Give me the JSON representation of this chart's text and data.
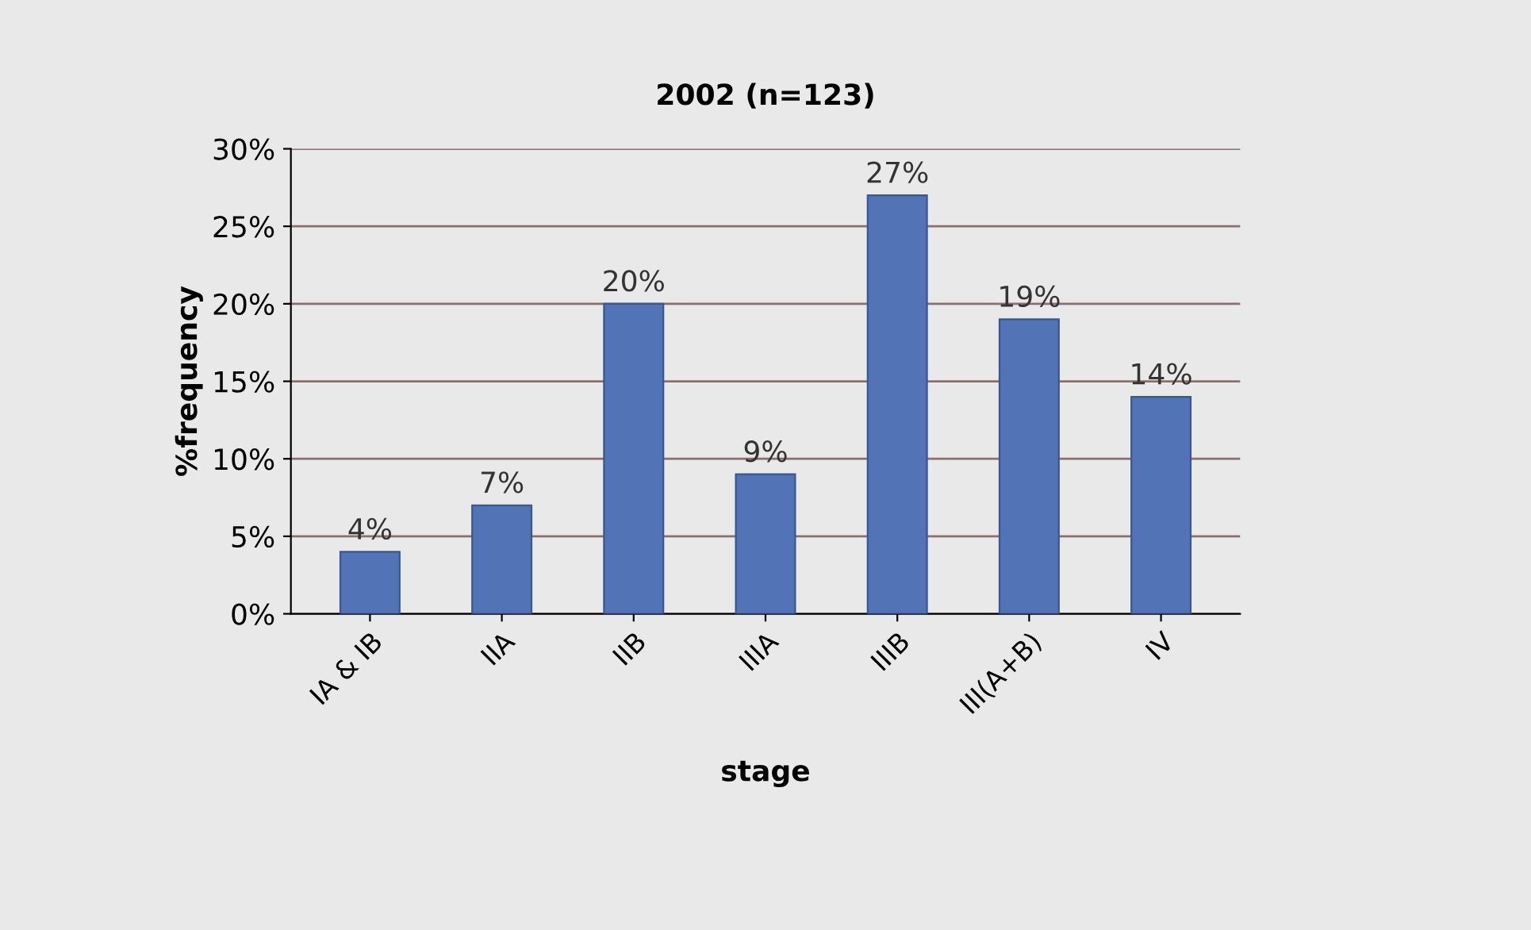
{
  "chart_data": {
    "type": "bar",
    "title": "2002 (n=123)",
    "xlabel": "stage",
    "ylabel": "%frequency",
    "categories": [
      "IA & IB",
      "IIA",
      "IIB",
      "IIIA",
      "IIIB",
      "III(A+B)",
      "IV"
    ],
    "values": [
      4,
      7,
      20,
      9,
      27,
      19,
      14
    ],
    "value_labels": [
      "4%",
      "7%",
      "20%",
      "9%",
      "27%",
      "19%",
      "14%"
    ],
    "color": "#5273b5",
    "ylim": [
      0,
      30
    ],
    "yticks": [
      {
        "value": 0,
        "label": "0%"
      },
      {
        "value": 5,
        "label": "5%"
      },
      {
        "value": 10,
        "label": "10%"
      },
      {
        "value": 15,
        "label": "15%"
      },
      {
        "value": 20,
        "label": "20%"
      },
      {
        "value": 25,
        "label": "25%"
      },
      {
        "value": 30,
        "label": "30%"
      }
    ],
    "grid": "y"
  }
}
